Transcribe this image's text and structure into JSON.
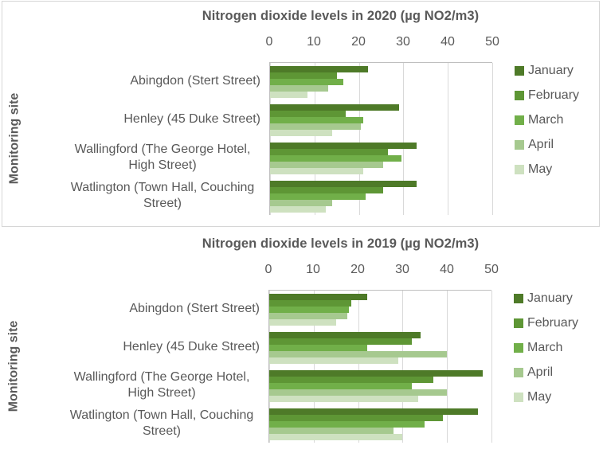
{
  "chart_data": [
    {
      "type": "bar",
      "orientation": "horizontal",
      "title": "Nitrogen dioxide levels in 2020 (µg NO2/m3)",
      "y_axis_title": "Monitoring site",
      "legend_position": "right",
      "grid": true,
      "x_axis": {
        "min": 0,
        "max": 50,
        "ticks": [
          0,
          10,
          20,
          30,
          40,
          50
        ]
      },
      "categories": [
        "Abingdon (Stert Street)",
        "Henley (45 Duke Street)",
        "Wallingford (The George Hotel, High Street)",
        "Watlington (Town Hall, Couching Street)"
      ],
      "series": [
        {
          "name": "January",
          "color": "#4e7a28",
          "values": [
            22,
            29,
            33,
            33
          ]
        },
        {
          "name": "February",
          "color": "#5e9635",
          "values": [
            15,
            17,
            26.5,
            25.5
          ]
        },
        {
          "name": "March",
          "color": "#71af49",
          "values": [
            16.5,
            21,
            29.5,
            21.5
          ]
        },
        {
          "name": "April",
          "color": "#a6c98f",
          "values": [
            13,
            20.5,
            25.5,
            14
          ]
        },
        {
          "name": "May",
          "color": "#cee1c0",
          "values": [
            8.5,
            14,
            21,
            12.5
          ]
        }
      ]
    },
    {
      "type": "bar",
      "orientation": "horizontal",
      "title": "Nitrogen dioxide levels in 2019 (µg NO2/m3)",
      "y_axis_title": "Monitoring site",
      "legend_position": "right",
      "grid": true,
      "x_axis": {
        "min": 0,
        "max": 50,
        "ticks": [
          0,
          10,
          20,
          30,
          40,
          50
        ]
      },
      "categories": [
        "Abingdon (Stert Street)",
        "Henley (45 Duke Street)",
        "Wallingford (The George Hotel, High Street)",
        "Watlington (Town Hall, Couching Street)"
      ],
      "series": [
        {
          "name": "January",
          "color": "#4e7a28",
          "values": [
            22,
            34,
            48,
            47
          ]
        },
        {
          "name": "February",
          "color": "#5e9635",
          "values": [
            18.5,
            32,
            37,
            39
          ]
        },
        {
          "name": "March",
          "color": "#71af49",
          "values": [
            18,
            22,
            32,
            35
          ]
        },
        {
          "name": "April",
          "color": "#a6c98f",
          "values": [
            17.5,
            40,
            40,
            28
          ]
        },
        {
          "name": "May",
          "color": "#cee1c0",
          "values": [
            15,
            29,
            33.5,
            30
          ]
        }
      ]
    }
  ],
  "colors": {
    "panel_border": "#d6d6d6",
    "axis_line": "#bfbfbf",
    "gridline": "#d9d9d9",
    "text": "#595959"
  }
}
